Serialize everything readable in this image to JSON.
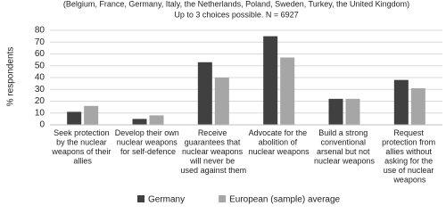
{
  "chart_data": {
    "type": "bar",
    "subtitle": [
      "(Belgium, France, Germany, Italy, the Netherlands, Poland, Sweden, Turkey, the United Kingdom)",
      "Up to 3 choices possible. N = 6927"
    ],
    "y_label": "% respondents",
    "categories": [
      "Seek protection by the nuclear weapons of their allies",
      "Develop their own nuclear weapons for self-defence",
      "Receive guarantees that nuclear weapons will never be used against them",
      "Advocate for the abolition of nuclear weapons",
      "Build a strong conventional arsenal but not nuclear weapons",
      "Request protection from allies without asking for the use of nuclear weapons"
    ],
    "series": [
      {
        "name": "Germany",
        "color": "#404040",
        "values": [
          11,
          5,
          53,
          75,
          22,
          38
        ]
      },
      {
        "name": "European (sample) average",
        "color": "#a6a6a6",
        "values": [
          16,
          8,
          40,
          57,
          22,
          31
        ]
      }
    ],
    "ylim": [
      0,
      80
    ],
    "yticks": [
      0,
      10,
      20,
      30,
      40,
      50,
      60,
      70,
      80
    ],
    "grid": true,
    "legend": "bottom"
  }
}
